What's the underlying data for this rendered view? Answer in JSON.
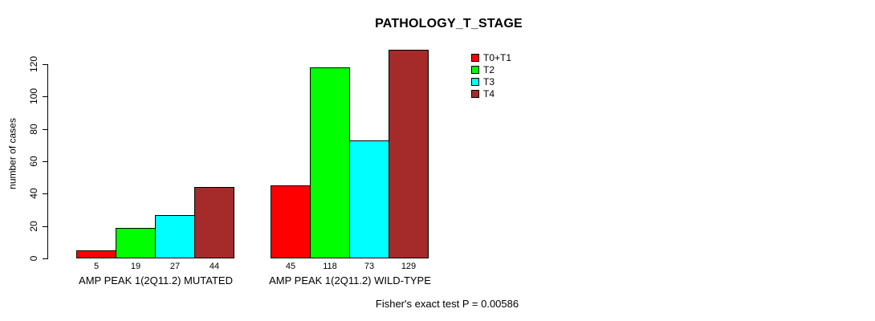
{
  "chart_data": {
    "type": "bar",
    "title": "PATHOLOGY_T_STAGE",
    "xlabel": "",
    "ylabel": "number of cases",
    "ylim": [
      0,
      120
    ],
    "yticks": [
      0,
      20,
      40,
      60,
      80,
      100,
      120
    ],
    "grid": false,
    "legend_position": "top-right",
    "categories": [
      "AMP PEAK 1(2Q11.2) MUTATED",
      "AMP PEAK 1(2Q11.2) WILD-TYPE"
    ],
    "series": [
      {
        "name": "T0+T1",
        "color": "#ff0000",
        "values": [
          5,
          45
        ]
      },
      {
        "name": "T2",
        "color": "#00ff00",
        "values": [
          19,
          118
        ]
      },
      {
        "name": "T3",
        "color": "#00ffff",
        "values": [
          27,
          73
        ]
      },
      {
        "name": "T4",
        "color": "#a52a2a",
        "values": [
          44,
          129
        ]
      }
    ],
    "bar_value_labels": [
      [
        5,
        19,
        27,
        44
      ],
      [
        45,
        118,
        73,
        129
      ]
    ],
    "annotation": "Fisher's exact test P = 0.00586"
  },
  "colors": {
    "background": "#ffffff",
    "axis": "#000000",
    "bar_border": "#000000",
    "text": "#000000"
  }
}
